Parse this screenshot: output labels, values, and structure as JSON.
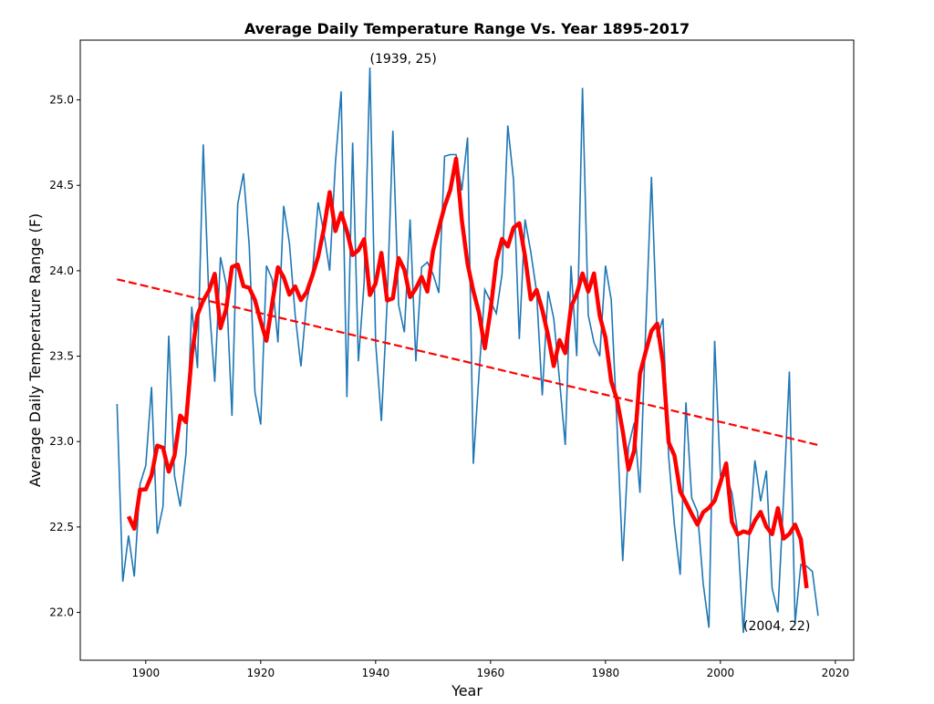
{
  "chart_data": {
    "type": "line",
    "title": "Average Daily Temperature Range Vs. Year 1895-2017",
    "xlabel": "Year",
    "ylabel": "Average Daily Temperature Range (F)",
    "xlim": [
      1888.6,
      2023.2
    ],
    "ylim": [
      21.72,
      25.35
    ],
    "xticks": [
      "1900",
      "1920",
      "1940",
      "1960",
      "1980",
      "2000",
      "2020"
    ],
    "yticks": [
      "22.0",
      "22.5",
      "23.0",
      "23.5",
      "24.0",
      "24.5",
      "25.0"
    ],
    "grid": false,
    "x_start": 1895,
    "series": [
      {
        "color": "#1f77b4",
        "values": [
          23.22,
          22.18,
          22.45,
          22.21,
          22.75,
          22.86,
          23.32,
          22.46,
          22.62,
          23.62,
          22.8,
          22.62,
          22.93,
          23.79,
          23.43,
          24.74,
          23.82,
          23.35,
          24.08,
          23.92,
          23.15,
          24.39,
          24.57,
          24.15,
          23.29,
          23.1,
          24.03,
          23.95,
          23.58,
          24.38,
          24.16,
          23.74,
          23.44,
          23.82,
          23.98,
          24.4,
          24.22,
          24.0,
          24.63,
          25.05,
          23.26,
          24.75,
          23.47,
          23.93,
          25.19,
          23.58,
          23.12,
          23.81,
          24.82,
          23.8,
          23.64,
          24.3,
          23.47,
          24.02,
          24.05,
          23.98,
          23.87,
          24.67,
          24.68,
          24.68,
          24.47,
          24.78,
          22.87,
          23.4,
          23.89,
          23.82,
          23.75,
          23.98,
          24.85,
          24.53,
          23.6,
          24.3,
          24.11,
          23.88,
          23.27,
          23.88,
          23.72,
          23.36,
          22.98,
          24.03,
          23.5,
          25.07,
          23.74,
          23.58,
          23.5,
          24.03,
          23.83,
          23.1,
          22.3,
          22.97,
          23.11,
          22.7,
          23.66,
          24.55,
          23.61,
          23.72,
          22.91,
          22.51,
          22.22,
          23.23,
          22.67,
          22.59,
          22.17,
          21.91,
          23.59,
          22.8,
          22.8,
          22.7,
          22.47,
          21.88,
          22.43,
          22.89,
          22.65,
          22.83,
          22.14,
          22.0,
          22.67,
          23.41,
          21.94,
          22.28,
          22.27,
          22.24,
          21.98
        ]
      },
      {
        "color": "#ff0000",
        "kind": "moving_average",
        "window": 5
      }
    ],
    "trendline": {
      "color": "#ff0000",
      "style": "dashed",
      "x": [
        1895,
        2017
      ],
      "y": [
        23.95,
        22.98
      ]
    },
    "annotations": [
      {
        "text": "(1939, 25)",
        "x": 1939,
        "y": 25.2
      },
      {
        "text": "(2004, 22)",
        "x": 2004,
        "y": 21.88
      }
    ]
  }
}
